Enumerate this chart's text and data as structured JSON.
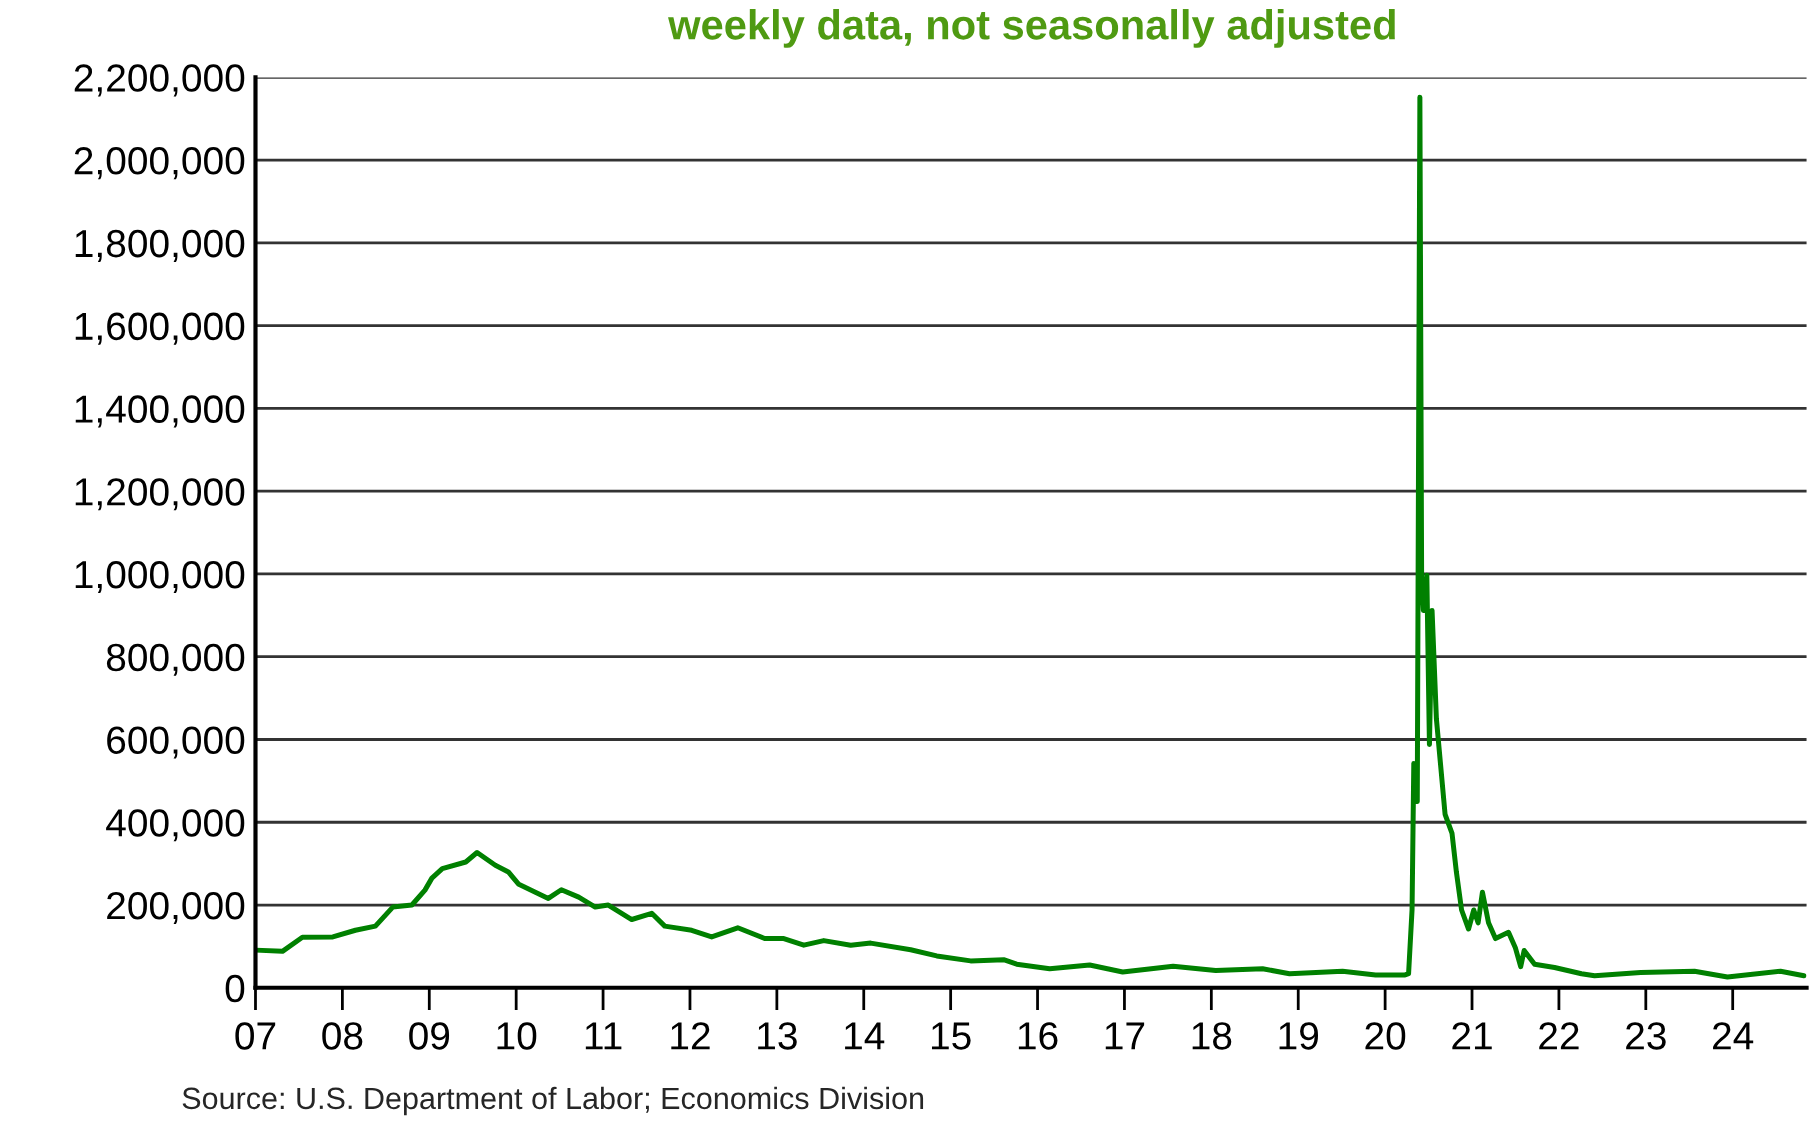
{
  "chart_data": {
    "type": "line",
    "title": "weekly data, not seasonally adjusted",
    "x": [
      2007.0,
      2007.31,
      2007.54,
      2007.89,
      2008.15,
      2008.38,
      2008.58,
      2008.8,
      2008.95,
      2009.03,
      2009.15,
      2009.42,
      2009.55,
      2009.76,
      2009.91,
      2010.03,
      2010.37,
      2010.52,
      2010.72,
      2010.91,
      2011.06,
      2011.33,
      2011.56,
      2011.71,
      2012.02,
      2012.25,
      2012.55,
      2012.86,
      2013.08,
      2013.31,
      2013.54,
      2013.85,
      2014.08,
      2014.54,
      2014.84,
      2015.23,
      2015.61,
      2015.76,
      2016.14,
      2016.6,
      2016.98,
      2017.56,
      2018.05,
      2018.59,
      2018.9,
      2019.51,
      2019.89,
      2020.23,
      2020.27,
      2020.31,
      2020.33,
      2020.37,
      2020.4,
      2020.42,
      2020.44,
      2020.48,
      2020.51,
      2020.54,
      2020.59,
      2020.69,
      2020.77,
      2020.82,
      2020.88,
      2020.96,
      2021.02,
      2021.07,
      2021.12,
      2021.19,
      2021.27,
      2021.42,
      2021.5,
      2021.56,
      2021.6,
      2021.72,
      2021.95,
      2022.26,
      2022.41,
      2022.94,
      2023.56,
      2023.94,
      2024.55,
      2024.82
    ],
    "series": [
      {
        "color": "#008000",
        "values": [
          91000,
          88000,
          122000,
          123000,
          139000,
          149000,
          195000,
          200000,
          236000,
          265000,
          288000,
          304000,
          327000,
          296000,
          280000,
          250000,
          216000,
          237000,
          219000,
          195000,
          200000,
          165000,
          180000,
          149000,
          139000,
          123000,
          145000,
          119000,
          119000,
          103000,
          114000,
          103000,
          108000,
          92000,
          77000,
          65000,
          68000,
          57000,
          46000,
          55000,
          38000,
          52000,
          42000,
          46000,
          34000,
          40000,
          31000,
          31000,
          34000,
          189000,
          542000,
          450000,
          2152000,
          989000,
          912000,
          997000,
          588000,
          912000,
          650000,
          419000,
          373000,
          280000,
          188000,
          142000,
          188000,
          157000,
          231000,
          157000,
          119000,
          134000,
          96000,
          51000,
          90000,
          57000,
          49000,
          34000,
          29000,
          37000,
          40000,
          26000,
          40000,
          29000
        ]
      }
    ],
    "xlim": [
      2007,
      2024.85
    ],
    "xticks": [
      {
        "value": 2007,
        "label": "07"
      },
      {
        "value": 2008,
        "label": "08"
      },
      {
        "value": 2009,
        "label": "09"
      },
      {
        "value": 2010,
        "label": "10"
      },
      {
        "value": 2011,
        "label": "11"
      },
      {
        "value": 2012,
        "label": "12"
      },
      {
        "value": 2013,
        "label": "13"
      },
      {
        "value": 2014,
        "label": "14"
      },
      {
        "value": 2015,
        "label": "15"
      },
      {
        "value": 2016,
        "label": "16"
      },
      {
        "value": 2017,
        "label": "17"
      },
      {
        "value": 2018,
        "label": "18"
      },
      {
        "value": 2019,
        "label": "19"
      },
      {
        "value": 2020,
        "label": "20"
      },
      {
        "value": 2021,
        "label": "21"
      },
      {
        "value": 2022,
        "label": "22"
      },
      {
        "value": 2023,
        "label": "23"
      },
      {
        "value": 2024,
        "label": "24"
      }
    ],
    "ylim": [
      0,
      2200000
    ],
    "yticks": [
      {
        "value": 0,
        "label": "0"
      },
      {
        "value": 200000,
        "label": "200,000"
      },
      {
        "value": 400000,
        "label": "400,000"
      },
      {
        "value": 600000,
        "label": "600,000"
      },
      {
        "value": 800000,
        "label": "800,000"
      },
      {
        "value": 1000000,
        "label": "1,000,000"
      },
      {
        "value": 1200000,
        "label": "1,200,000"
      },
      {
        "value": 1400000,
        "label": "1,400,000"
      },
      {
        "value": 1600000,
        "label": "1,600,000"
      },
      {
        "value": 1800000,
        "label": "1,800,000"
      },
      {
        "value": 2000000,
        "label": "2,000,000"
      },
      {
        "value": 2200000,
        "label": "2,200,000"
      }
    ],
    "grid": "y",
    "legend": false,
    "line_style": "solid",
    "marker": "none",
    "annotations": [
      "Source: U.S. Department of Labor; Economics Division"
    ]
  }
}
